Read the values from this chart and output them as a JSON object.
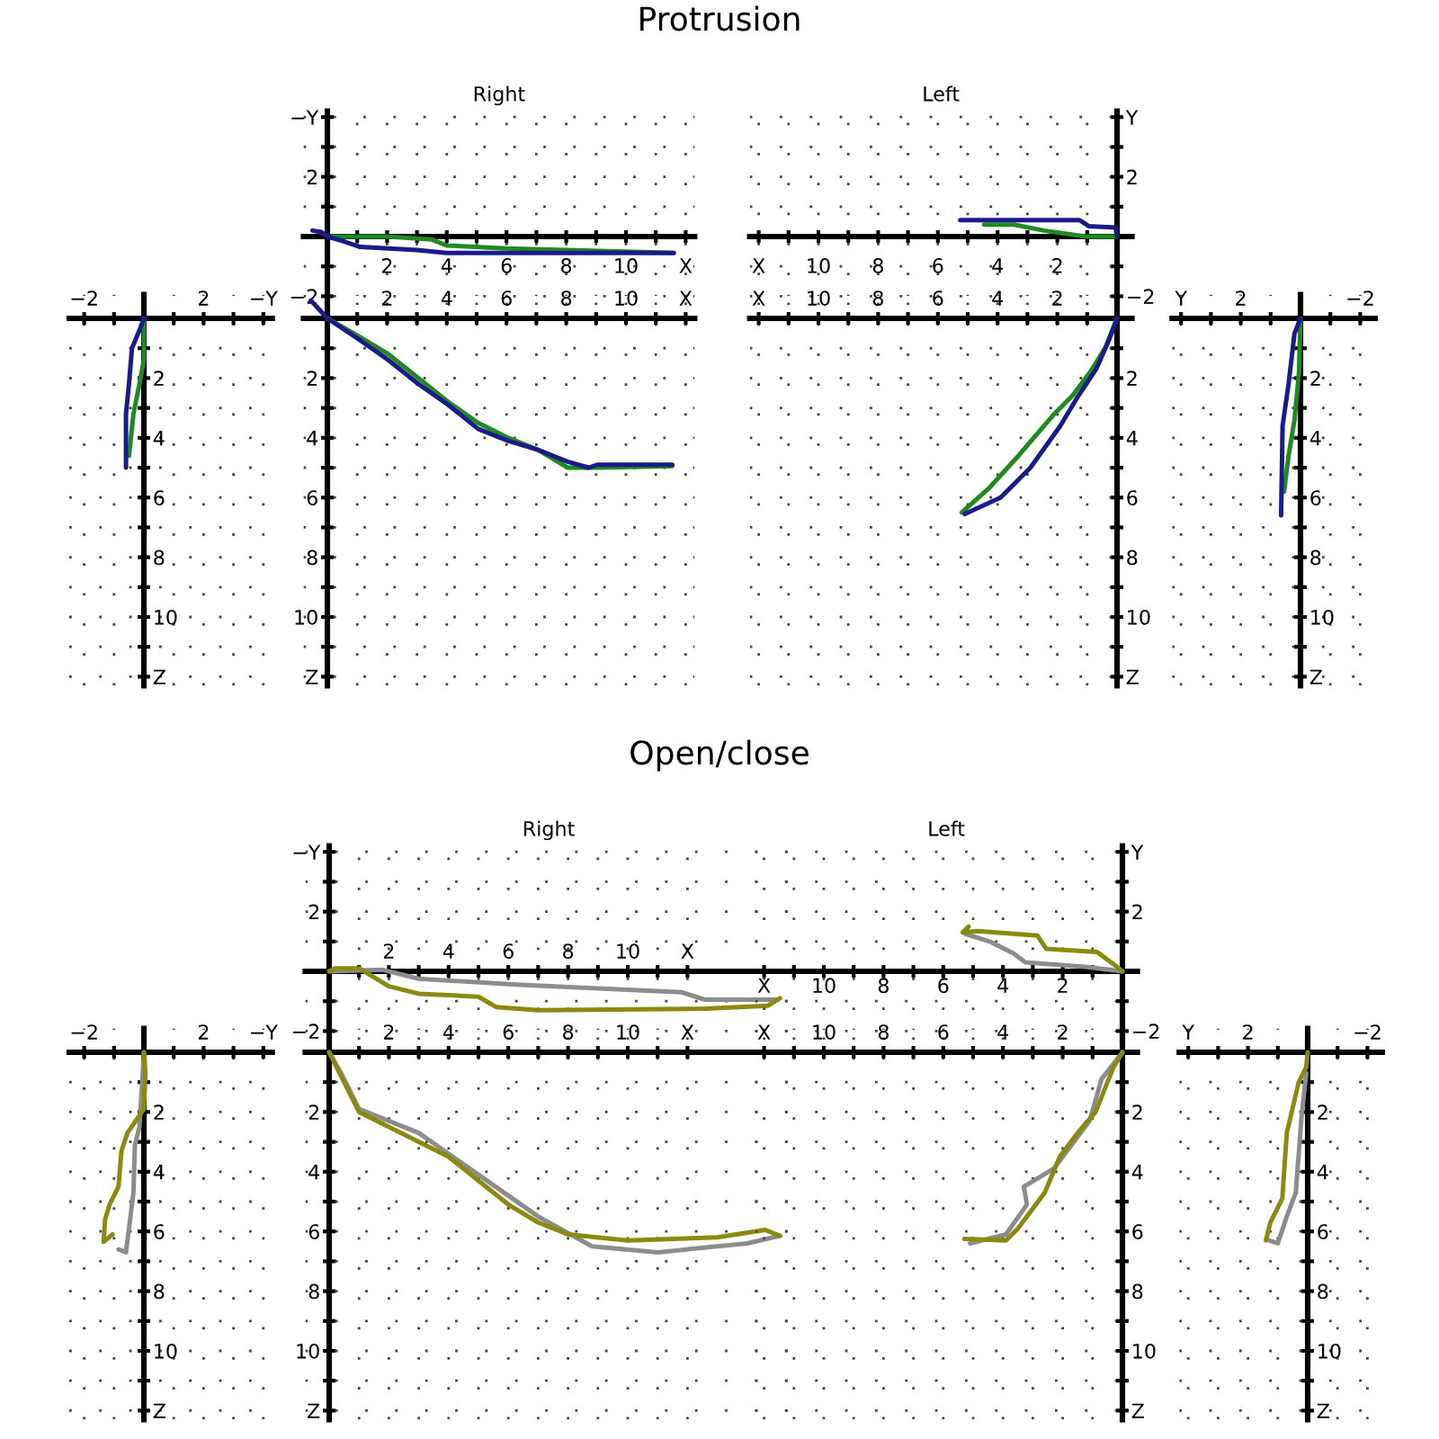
{
  "chart_data": [
    {
      "type": "other",
      "title": "Protrusion"
    },
    {
      "type": "line",
      "grid": true,
      "xlim": [
        -2.5,
        4.3
      ],
      "ylim": [
        12.3,
        -0.8
      ],
      "xticks": [
        {
          "value": -2,
          "label": "−2"
        },
        {
          "value": -1,
          "label": null
        },
        {
          "value": 1,
          "label": null
        },
        2,
        {
          "value": 3,
          "label": null
        },
        {
          "value": 4,
          "label": "−Y"
        }
      ],
      "yticks": [
        {
          "value": 1,
          "label": null
        },
        2,
        {
          "value": 3,
          "label": null
        },
        4,
        {
          "value": 5,
          "label": null
        },
        6,
        {
          "value": 7,
          "label": null
        },
        8,
        {
          "value": 9,
          "label": null
        },
        10,
        {
          "value": 11,
          "label": null
        },
        {
          "value": 12,
          "label": "Z"
        }
      ],
      "series": [
        {
          "color": "#1f8a1f",
          "x": [
            0,
            0,
            -0.15,
            -0.35,
            -0.5
          ],
          "values": [
            0,
            1.4,
            2.2,
            3.2,
            4.6
          ]
        },
        {
          "color": "#1a1a8a",
          "x": [
            0,
            -0.15,
            -0.4,
            -0.5,
            -0.6,
            -0.6
          ],
          "values": [
            0,
            0.4,
            1,
            2.2,
            3.2,
            5
          ]
        }
      ]
    },
    {
      "type": "line",
      "title": "Right",
      "grid": true,
      "xlim": [
        -0.8,
        12.3
      ],
      "ylim": [
        -2.3,
        4.2
      ],
      "xticks": [
        {
          "value": 1,
          "label": null
        },
        2,
        {
          "value": 3,
          "label": null
        },
        4,
        {
          "value": 5,
          "label": null
        },
        6,
        {
          "value": 7,
          "label": null
        },
        8,
        {
          "value": 9,
          "label": null
        },
        10,
        {
          "value": 11,
          "label": null
        },
        {
          "value": 12,
          "label": "X"
        }
      ],
      "yticks": [
        {
          "value": -2,
          "label": "−2"
        },
        {
          "value": -1,
          "label": null
        },
        {
          "value": 1,
          "label": null
        },
        2,
        {
          "value": 3,
          "label": null
        },
        {
          "value": 4,
          "label": "−Y"
        }
      ],
      "series": [
        {
          "color": "#1f8a1f",
          "x": [
            0,
            2,
            3.5,
            4,
            6,
            8,
            11.6
          ],
          "values": [
            0,
            0,
            -0.1,
            -0.3,
            -0.4,
            -0.45,
            -0.55
          ]
        },
        {
          "color": "#1a1a8a",
          "x": [
            -0.5,
            -0.2,
            0,
            0.5,
            1.1,
            3,
            4,
            8,
            11.6
          ],
          "values": [
            0.2,
            0.15,
            0,
            -0.15,
            -0.35,
            -0.45,
            -0.55,
            -0.55,
            -0.55
          ]
        }
      ]
    },
    {
      "type": "line",
      "grid": true,
      "xlim": [
        -0.8,
        12.3
      ],
      "ylim": [
        12.3,
        -0.8
      ],
      "xticks": [
        {
          "value": 1,
          "label": null
        },
        2,
        {
          "value": 3,
          "label": null
        },
        4,
        {
          "value": 5,
          "label": null
        },
        6,
        {
          "value": 7,
          "label": null
        },
        8,
        {
          "value": 9,
          "label": null
        },
        10,
        {
          "value": 11,
          "label": null
        },
        {
          "value": 12,
          "label": "X"
        }
      ],
      "yticks": [
        {
          "value": 1,
          "label": null
        },
        2,
        {
          "value": 3,
          "label": null
        },
        4,
        {
          "value": 5,
          "label": null
        },
        6,
        {
          "value": 7,
          "label": null
        },
        8,
        {
          "value": 9,
          "label": null
        },
        10,
        {
          "value": 11,
          "label": null
        },
        {
          "value": 12,
          "label": "Z"
        }
      ],
      "series": [
        {
          "color": "#1f8a1f",
          "x": [
            0,
            1.05,
            2.05,
            3.05,
            4.05,
            5.05,
            6.05,
            7.05,
            8.05,
            9.05,
            11.55
          ],
          "values": [
            0,
            0.6,
            1.2,
            2,
            2.8,
            3.5,
            4,
            4.4,
            5,
            5,
            4.95
          ]
        },
        {
          "color": "#1a1a8a",
          "x": [
            -0.55,
            0,
            1.05,
            2.05,
            3.05,
            4.05,
            5.05,
            6.05,
            7.05,
            8.05,
            8.75,
            9.05,
            11.55
          ],
          "values": [
            -0.6,
            0,
            0.7,
            1.4,
            2.2,
            2.9,
            3.7,
            4.1,
            4.4,
            4.8,
            5,
            4.9,
            4.9
          ]
        }
      ]
    },
    {
      "type": "line",
      "title": "Left",
      "grid": true,
      "xlim": [
        12.3,
        -0.5
      ],
      "ylim": [
        -2.3,
        4.2
      ],
      "xticks": [
        {
          "value": 1,
          "label": null
        },
        2,
        {
          "value": 3,
          "label": null
        },
        4,
        {
          "value": 5,
          "label": null
        },
        6,
        {
          "value": 7,
          "label": null
        },
        8,
        {
          "value": 9,
          "label": null
        },
        10,
        {
          "value": 11,
          "label": null
        },
        {
          "value": 12,
          "label": "X"
        }
      ],
      "yticks": [
        {
          "value": -2,
          "label": "−2"
        },
        {
          "value": -1,
          "label": null
        },
        {
          "value": 1,
          "label": null
        },
        2,
        {
          "value": 3,
          "label": null
        },
        {
          "value": 4,
          "label": "Y"
        }
      ],
      "series": [
        {
          "color": "#1f8a1f",
          "x": [
            0,
            1.05,
            2.45,
            3.45,
            4.45
          ],
          "values": [
            0,
            0,
            0.2,
            0.4,
            0.4
          ]
        },
        {
          "color": "#1a1a8a",
          "x": [
            0,
            0.05,
            0.95,
            1.25,
            5.25
          ],
          "values": [
            0,
            0.3,
            0.35,
            0.55,
            0.55
          ]
        }
      ]
    },
    {
      "type": "line",
      "grid": true,
      "xlim": [
        12.3,
        -0.5
      ],
      "ylim": [
        12.3,
        -0.8
      ],
      "xticks": [
        {
          "value": 1,
          "label": null
        },
        2,
        {
          "value": 3,
          "label": null
        },
        4,
        {
          "value": 5,
          "label": null
        },
        6,
        {
          "value": 7,
          "label": null
        },
        8,
        {
          "value": 9,
          "label": null
        },
        10,
        {
          "value": 11,
          "label": null
        },
        {
          "value": 12,
          "label": "X"
        }
      ],
      "yticks": [
        {
          "value": 1,
          "label": null
        },
        2,
        {
          "value": 3,
          "label": null
        },
        4,
        {
          "value": 5,
          "label": null
        },
        6,
        {
          "value": 7,
          "label": null
        },
        8,
        {
          "value": 9,
          "label": null
        },
        10,
        {
          "value": 11,
          "label": null
        },
        {
          "value": 12,
          "label": "Z"
        }
      ],
      "series": [
        {
          "color": "#1f8a1f",
          "x": [
            0,
            0.4,
            0.9,
            1.5,
            2.1,
            3.3,
            4.3,
            5.2
          ],
          "values": [
            0,
            1,
            1.8,
            2.6,
            3.2,
            4.6,
            5.7,
            6.5
          ]
        },
        {
          "color": "#1a1a8a",
          "x": [
            0,
            0.3,
            0.7,
            1.3,
            1.9,
            2.9,
            3.9,
            5.1
          ],
          "values": [
            0,
            0.8,
            1.7,
            2.6,
            3.6,
            5,
            6,
            6.55
          ]
        }
      ]
    },
    {
      "type": "line",
      "grid": true,
      "xlim": [
        4.3,
        -2.5
      ],
      "ylim": [
        12.3,
        -0.8
      ],
      "xticks": [
        {
          "value": 4,
          "label": "Y"
        },
        {
          "value": 3,
          "label": null
        },
        2,
        {
          "value": 1,
          "label": null
        },
        {
          "value": -1,
          "label": null
        },
        {
          "value": -2,
          "label": "−2"
        }
      ],
      "yticks": [
        {
          "value": 1,
          "label": null
        },
        2,
        {
          "value": 3,
          "label": null
        },
        4,
        {
          "value": 5,
          "label": null
        },
        6,
        {
          "value": 7,
          "label": null
        },
        8,
        {
          "value": 9,
          "label": null
        },
        10,
        {
          "value": 11,
          "label": null
        },
        {
          "value": 12,
          "label": "Z"
        }
      ],
      "series": [
        {
          "color": "#1f8a1f",
          "x": [
            0,
            0.05,
            0.2,
            0.4,
            0.55
          ],
          "values": [
            0,
            1.8,
            3.4,
            4.6,
            5.8
          ]
        },
        {
          "color": "#1a1a8a",
          "x": [
            0,
            0.2,
            0.4,
            0.6,
            0.65
          ],
          "values": [
            0,
            0.5,
            2.2,
            3.6,
            6.6
          ]
        }
      ]
    },
    {
      "type": "other",
      "title": "Open/close"
    },
    {
      "type": "line",
      "grid": true,
      "xlim": [
        -2.5,
        4.3
      ],
      "ylim": [
        12.3,
        -0.8
      ],
      "xticks": [
        {
          "value": -2,
          "label": "−2"
        },
        {
          "value": -1,
          "label": null
        },
        {
          "value": 1,
          "label": null
        },
        2,
        {
          "value": 3,
          "label": null
        },
        {
          "value": 4,
          "label": "−Y"
        }
      ],
      "yticks": [
        {
          "value": 1,
          "label": null
        },
        2,
        {
          "value": 3,
          "label": null
        },
        4,
        {
          "value": 5,
          "label": null
        },
        6,
        {
          "value": 7,
          "label": null
        },
        8,
        {
          "value": 9,
          "label": null
        },
        10,
        {
          "value": 11,
          "label": null
        },
        {
          "value": 12,
          "label": "Z"
        }
      ],
      "series": [
        {
          "color": "#8c8c8c",
          "x": [
            0,
            0,
            -0.15,
            -0.3,
            -0.35,
            -0.5,
            -0.6,
            -0.85
          ],
          "values": [
            0,
            0.1,
            2.5,
            3.1,
            4.7,
            5.9,
            6.7,
            6.6
          ]
        },
        {
          "color": "#8a8a10",
          "x": [
            0,
            0.05,
            0,
            -0.55,
            -0.75,
            -0.85,
            -1.15,
            -1.3,
            -1.35,
            -1.05
          ],
          "values": [
            0,
            0.7,
            1.9,
            2.7,
            3.3,
            4.5,
            5.1,
            5.6,
            6.35,
            6.1
          ]
        }
      ]
    },
    {
      "type": "line",
      "title": "Right",
      "grid": true,
      "xlim": [
        -0.8,
        15.5
      ],
      "ylim": [
        -2.3,
        4.2
      ],
      "xticks": [
        {
          "value": 1,
          "label": null
        },
        2,
        {
          "value": 3,
          "label": null
        },
        4,
        {
          "value": 5,
          "label": null
        },
        6,
        {
          "value": 7,
          "label": null
        },
        8,
        {
          "value": 9,
          "label": null
        },
        10,
        {
          "value": 11,
          "label": null
        },
        {
          "value": 12,
          "label": "X"
        }
      ],
      "yticks": [
        {
          "value": -2,
          "label": "−2"
        },
        {
          "value": -1,
          "label": null
        },
        {
          "value": 1,
          "label": null
        },
        2,
        {
          "value": 3,
          "label": null
        },
        {
          "value": 4,
          "label": "−Y"
        }
      ],
      "series": [
        {
          "color": "#8c8c8c",
          "x": [
            0,
            1.8,
            3,
            6.4,
            11.8,
            12.6,
            15
          ],
          "values": [
            0,
            0.05,
            -0.25,
            -0.45,
            -0.7,
            -0.95,
            -0.95
          ]
        },
        {
          "color": "#8a8a10",
          "x": [
            0,
            0.2,
            1,
            2,
            3,
            5,
            5.6,
            7,
            12.6,
            14.7,
            15.1
          ],
          "values": [
            0,
            0.1,
            0.1,
            -0.5,
            -0.75,
            -0.85,
            -1.2,
            -1.3,
            -1.25,
            -1.15,
            -0.9
          ]
        }
      ]
    },
    {
      "type": "line",
      "grid": true,
      "xlim": [
        -0.8,
        15.5
      ],
      "ylim": [
        12.3,
        -0.8
      ],
      "xticks": [
        {
          "value": 1,
          "label": null
        },
        2,
        {
          "value": 3,
          "label": null
        },
        4,
        {
          "value": 5,
          "label": null
        },
        6,
        {
          "value": 7,
          "label": null
        },
        8,
        {
          "value": 9,
          "label": null
        },
        10,
        {
          "value": 11,
          "label": null
        },
        {
          "value": 12,
          "label": "X"
        }
      ],
      "yticks": [
        {
          "value": 1,
          "label": null
        },
        2,
        {
          "value": 3,
          "label": null
        },
        4,
        {
          "value": 5,
          "label": null
        },
        6,
        {
          "value": 7,
          "label": null
        },
        8,
        {
          "value": 9,
          "label": null
        },
        10,
        {
          "value": 11,
          "label": null
        },
        {
          "value": 12,
          "label": "Z"
        }
      ],
      "series": [
        {
          "color": "#8c8c8c",
          "x": [
            0,
            0.4,
            1,
            3,
            5,
            7,
            8.8,
            11,
            14,
            15.1
          ],
          "values": [
            0,
            0.7,
            1.9,
            2.7,
            4.1,
            5.5,
            6.5,
            6.7,
            6.4,
            6.15
          ]
        },
        {
          "color": "#8a8a10",
          "x": [
            0,
            0.3,
            1,
            2,
            4,
            5,
            6,
            7,
            8,
            10,
            13,
            14.6,
            15.1
          ],
          "values": [
            0,
            0.6,
            2,
            2.5,
            3.5,
            4.3,
            5.1,
            5.7,
            6.1,
            6.3,
            6.2,
            5.95,
            6.15
          ]
        }
      ]
    },
    {
      "type": "line",
      "title": "Left",
      "grid": true,
      "xlim": [
        12.3,
        -0.5
      ],
      "ylim": [
        -2.3,
        4.2
      ],
      "xticks": [
        {
          "value": 1,
          "label": null
        },
        2,
        {
          "value": 3,
          "label": null
        },
        4,
        {
          "value": 5,
          "label": null
        },
        6,
        {
          "value": 7,
          "label": null
        },
        8,
        {
          "value": 9,
          "label": null
        },
        10,
        {
          "value": 11,
          "label": null
        },
        {
          "value": 12,
          "label": "X"
        }
      ],
      "yticks": [
        {
          "value": -2,
          "label": "−2"
        },
        {
          "value": -1,
          "label": null
        },
        {
          "value": 1,
          "label": null
        },
        2,
        {
          "value": 3,
          "label": null
        },
        {
          "value": 4,
          "label": "Y"
        }
      ],
      "series": [
        {
          "color": "#8c8c8c",
          "x": [
            0,
            1.25,
            3.25,
            3.65,
            4.45,
            5.25
          ],
          "values": [
            0,
            0.15,
            0.3,
            0.6,
            1,
            1.25
          ]
        },
        {
          "color": "#8a8a10",
          "x": [
            0,
            0.25,
            0.85,
            2.55,
            2.85,
            4.85,
            5.35,
            5.15
          ],
          "values": [
            0,
            0.2,
            0.65,
            0.75,
            1.2,
            1.35,
            1.3,
            1.5
          ]
        }
      ]
    },
    {
      "type": "line",
      "grid": true,
      "xlim": [
        12.3,
        -0.5
      ],
      "ylim": [
        12.3,
        -0.8
      ],
      "xticks": [
        {
          "value": 1,
          "label": null
        },
        2,
        {
          "value": 3,
          "label": null
        },
        4,
        {
          "value": 5,
          "label": null
        },
        6,
        {
          "value": 7,
          "label": null
        },
        8,
        {
          "value": 9,
          "label": null
        },
        10,
        {
          "value": 11,
          "label": null
        },
        {
          "value": 12,
          "label": "X"
        }
      ],
      "yticks": [
        {
          "value": 1,
          "label": null
        },
        2,
        {
          "value": 3,
          "label": null
        },
        4,
        {
          "value": 5,
          "label": null
        },
        6,
        {
          "value": 7,
          "label": null
        },
        8,
        {
          "value": 9,
          "label": null
        },
        10,
        {
          "value": 11,
          "label": null
        },
        {
          "value": 12,
          "label": "Z"
        }
      ],
      "series": [
        {
          "color": "#8c8c8c",
          "x": [
            0,
            0.7,
            1.1,
            2.3,
            3.3,
            3.2,
            3.9,
            5.1
          ],
          "values": [
            0,
            0.9,
            2.3,
            3.9,
            4.5,
            5.1,
            6.1,
            6.4
          ]
        },
        {
          "color": "#8a8a10",
          "x": [
            0,
            0.3,
            0.9,
            1.5,
            2.1,
            2.6,
            3.5,
            3.9,
            5.3
          ],
          "values": [
            0,
            0.5,
            2,
            2.7,
            3.5,
            4.7,
            5.9,
            6.3,
            6.25
          ]
        }
      ]
    },
    {
      "type": "line",
      "grid": true,
      "xlim": [
        4.3,
        -2.5
      ],
      "ylim": [
        12.3,
        -0.8
      ],
      "xticks": [
        {
          "value": 4,
          "label": "Y"
        },
        {
          "value": 3,
          "label": null
        },
        2,
        {
          "value": 1,
          "label": null
        },
        {
          "value": -1,
          "label": null
        },
        {
          "value": -2,
          "label": "−2"
        }
      ],
      "yticks": [
        {
          "value": 1,
          "label": null
        },
        2,
        {
          "value": 3,
          "label": null
        },
        4,
        {
          "value": 5,
          "label": null
        },
        6,
        {
          "value": 7,
          "label": null
        },
        8,
        {
          "value": 9,
          "label": null
        },
        10,
        {
          "value": 11,
          "label": null
        },
        {
          "value": 12,
          "label": "Z"
        }
      ],
      "series": [
        {
          "color": "#8c8c8c",
          "x": [
            0.05,
            0.2,
            0.4,
            0.7,
            1,
            1.3
          ],
          "values": [
            0.7,
            2.1,
            4.7,
            5.5,
            6.4,
            6.3
          ]
        },
        {
          "color": "#8a8a10",
          "x": [
            0,
            0.05,
            0.3,
            0.7,
            0.85,
            1.25,
            1.4
          ],
          "values": [
            0,
            0.5,
            1,
            2.7,
            4.9,
            5.7,
            6.3
          ]
        }
      ]
    }
  ]
}
